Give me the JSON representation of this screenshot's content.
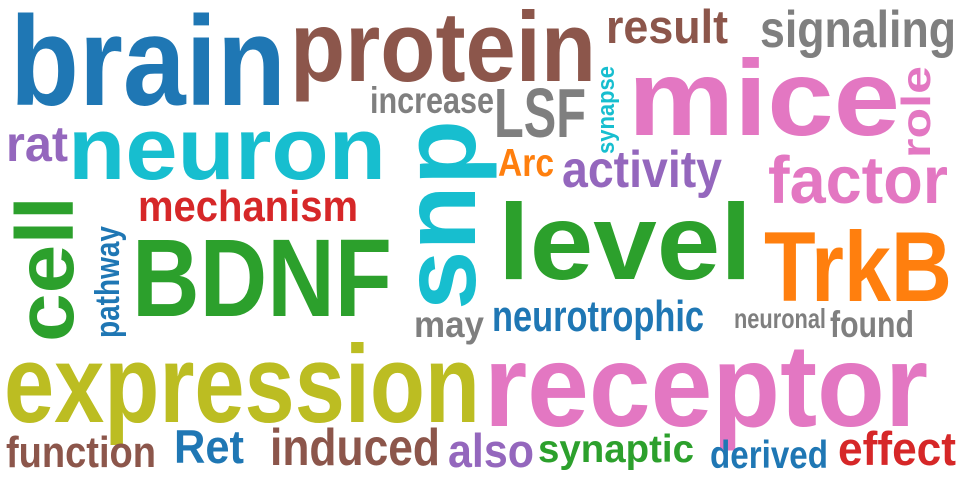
{
  "palette": {
    "blue": "#1f77b4",
    "brown": "#8c564b",
    "pink": "#e377c2",
    "gray": "#7f7f7f",
    "cyan": "#17becf",
    "purple": "#9467bd",
    "green": "#2ca02c",
    "red": "#d62728",
    "orange": "#ff7f0e",
    "olive": "#bcbd22"
  },
  "words": [
    {
      "text": "brain",
      "color": "#1f77b4"
    },
    {
      "text": "protein",
      "color": "#8c564b"
    },
    {
      "text": "result",
      "color": "#8c564b"
    },
    {
      "text": "signaling",
      "color": "#7f7f7f"
    },
    {
      "text": "mice",
      "color": "#e377c2"
    },
    {
      "text": "role",
      "color": "#e377c2"
    },
    {
      "text": "increase",
      "color": "#7f7f7f"
    },
    {
      "text": "LSF",
      "color": "#7f7f7f"
    },
    {
      "text": "synapse",
      "color": "#17becf"
    },
    {
      "text": "rat",
      "color": "#9467bd"
    },
    {
      "text": "neuron",
      "color": "#17becf"
    },
    {
      "text": "snp",
      "color": "#17becf"
    },
    {
      "text": "Arc",
      "color": "#ff7f0e"
    },
    {
      "text": "activity",
      "color": "#9467bd"
    },
    {
      "text": "factor",
      "color": "#e377c2"
    },
    {
      "text": "mechanism",
      "color": "#d62728"
    },
    {
      "text": "cell",
      "color": "#2ca02c"
    },
    {
      "text": "pathway",
      "color": "#1f77b4"
    },
    {
      "text": "BDNF",
      "color": "#2ca02c"
    },
    {
      "text": "level",
      "color": "#2ca02c"
    },
    {
      "text": "TrkB",
      "color": "#ff7f0e"
    },
    {
      "text": "may",
      "color": "#7f7f7f"
    },
    {
      "text": "neurotrophic",
      "color": "#1f77b4"
    },
    {
      "text": "neuronal",
      "color": "#7f7f7f"
    },
    {
      "text": "found",
      "color": "#7f7f7f"
    },
    {
      "text": "expression",
      "color": "#bcbd22"
    },
    {
      "text": "receptor",
      "color": "#e377c2"
    },
    {
      "text": "function",
      "color": "#8c564b"
    },
    {
      "text": "Ret",
      "color": "#1f77b4"
    },
    {
      "text": "induced",
      "color": "#8c564b"
    },
    {
      "text": "also",
      "color": "#9467bd"
    },
    {
      "text": "synaptic",
      "color": "#2ca02c"
    },
    {
      "text": "derived",
      "color": "#1f77b4"
    },
    {
      "text": "effect",
      "color": "#d62728"
    }
  ]
}
